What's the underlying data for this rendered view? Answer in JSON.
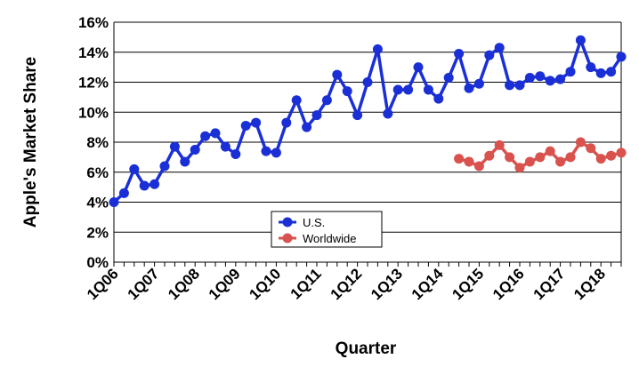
{
  "chart_data": {
    "type": "line",
    "xlabel": "Quarter",
    "ylabel": "Apple's Market Share",
    "ylim": [
      0,
      16
    ],
    "y_ticks": [
      "0%",
      "2%",
      "4%",
      "6%",
      "8%",
      "10%",
      "12%",
      "14%",
      "16%"
    ],
    "x_tick_labels": [
      "1Q06",
      "1Q07",
      "1Q08",
      "1Q09",
      "1Q10",
      "1Q11",
      "1Q12",
      "1Q13",
      "1Q14",
      "1Q15",
      "1Q16",
      "1Q17",
      "1Q18"
    ],
    "grid": "horizontal",
    "legend_position": "bottom-center",
    "series": [
      {
        "name": "U.S.",
        "color": "#1a2fd6",
        "values": [
          4.0,
          4.6,
          6.2,
          5.1,
          5.2,
          6.4,
          7.7,
          6.7,
          7.5,
          8.4,
          8.6,
          7.7,
          7.2,
          9.1,
          9.3,
          7.4,
          7.3,
          9.3,
          10.8,
          9.0,
          9.8,
          10.8,
          12.5,
          11.4,
          9.8,
          12.0,
          14.2,
          9.9,
          11.5,
          11.5,
          13.0,
          11.5,
          10.9,
          12.3,
          13.9,
          11.6,
          11.9,
          13.8,
          14.3,
          11.8,
          11.8,
          12.3,
          12.4,
          12.1,
          12.2,
          12.7,
          14.8,
          13.0,
          12.6,
          12.7,
          13.7
        ]
      },
      {
        "name": "Worldwide",
        "color": "#d9524e",
        "start_index": 34,
        "values": [
          6.9,
          6.7,
          6.4,
          7.1,
          7.8,
          7.0,
          6.3,
          6.7,
          7.0,
          7.4,
          6.7,
          7.0,
          8.0,
          7.6,
          6.9,
          7.1,
          7.3
        ]
      }
    ]
  }
}
